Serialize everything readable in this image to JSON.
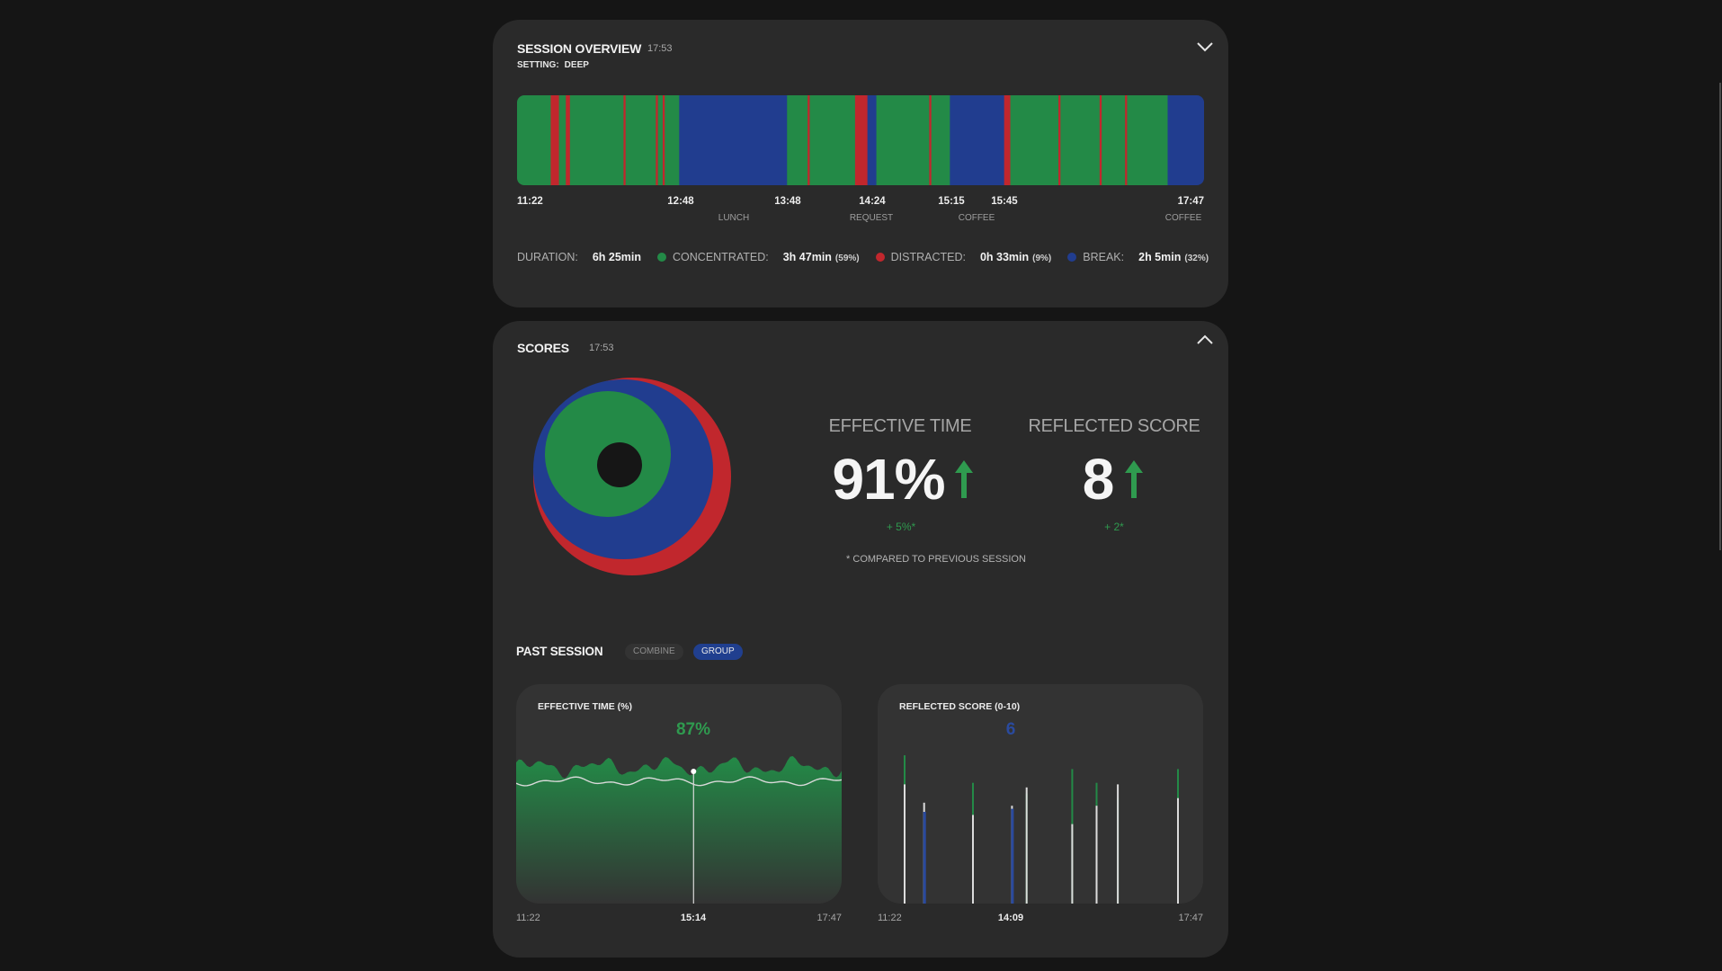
{
  "overview": {
    "title": "SESSION OVERVIEW",
    "time": "17:53",
    "setting_label": "SETTING:",
    "setting_value": "DEEP",
    "ticks": [
      "11:22",
      "12:48",
      "13:48",
      "14:24",
      "15:15",
      "15:45",
      "17:47"
    ],
    "annotations": [
      "LUNCH",
      "REQUEST",
      "COFFEE",
      "COFFEE"
    ],
    "duration_label": "DURATION:",
    "duration_value": "6h 25min",
    "concentrated_label": "CONCENTRATED:",
    "concentrated_value": "3h 47min",
    "concentrated_pct": "(59%)",
    "distracted_label": "DISTRACTED:",
    "distracted_value": "0h 33min",
    "distracted_pct": "(9%)",
    "break_label": "BREAK:",
    "break_value": "2h 5min",
    "break_pct": "(32%)",
    "colors": {
      "concentrated": "#238a47",
      "distracted": "#c1272d",
      "break": "#213d8f"
    },
    "timeline": [
      [
        "c",
        0.0,
        0.049
      ],
      [
        "d",
        0.049,
        0.061
      ],
      [
        "c",
        0.061,
        0.071
      ],
      [
        "d",
        0.071,
        0.077
      ],
      [
        "c",
        0.077,
        0.155
      ],
      [
        "d",
        0.155,
        0.158
      ],
      [
        "c",
        0.158,
        0.202
      ],
      [
        "d",
        0.202,
        0.205
      ],
      [
        "c",
        0.205,
        0.212
      ],
      [
        "d",
        0.212,
        0.215
      ],
      [
        "c",
        0.215,
        0.236
      ],
      [
        "b",
        0.236,
        0.393
      ],
      [
        "c",
        0.393,
        0.423
      ],
      [
        "d",
        0.423,
        0.426
      ],
      [
        "c",
        0.426,
        0.492
      ],
      [
        "d",
        0.492,
        0.51
      ],
      [
        "b",
        0.51,
        0.523
      ],
      [
        "c",
        0.523,
        0.6
      ],
      [
        "d",
        0.6,
        0.603
      ],
      [
        "c",
        0.603,
        0.63
      ],
      [
        "b",
        0.63,
        0.709
      ],
      [
        "d",
        0.709,
        0.718
      ],
      [
        "c",
        0.718,
        0.788
      ],
      [
        "d",
        0.788,
        0.791
      ],
      [
        "c",
        0.791,
        0.848
      ],
      [
        "d",
        0.848,
        0.851
      ],
      [
        "c",
        0.851,
        0.885
      ],
      [
        "d",
        0.885,
        0.888
      ],
      [
        "c",
        0.888,
        0.947
      ],
      [
        "b",
        0.947,
        1.0
      ]
    ]
  },
  "scores": {
    "title": "SCORES",
    "time": "17:53",
    "effective_label": "EFFECTIVE TIME",
    "effective_value": "91%",
    "effective_delta": "+ 5%*",
    "reflected_label": "REFLECTED SCORE",
    "reflected_value": "8",
    "reflected_delta": "+ 2*",
    "footnote": "* COMPARED TO PREVIOUS SESSION",
    "donut": {
      "distracted": 9,
      "break": 32,
      "concentrated": 59
    }
  },
  "past": {
    "title": "PAST SESSION",
    "combine_label": "COMBINE",
    "group_label": "GROUP",
    "effective": {
      "title": "EFFECTIVE TIME (%)",
      "value": "87%",
      "value_color": "#2f9a4f",
      "cursor": 0.545,
      "axis_start": "11:22",
      "axis_mid": "15:14",
      "axis_end": "17:47"
    },
    "reflected": {
      "title": "REFLECTED SCORE (0-10)",
      "value": "6",
      "value_color": "#2a4a9e",
      "axis_start": "11:22",
      "axis_mid": "14:09",
      "axis_end": "17:47",
      "bars": [
        {
          "x": 0.08,
          "green": 0.97,
          "white": 0.78,
          "blue": 0
        },
        {
          "x": 0.14,
          "green": 0,
          "white": 0.66,
          "blue": 0.6
        },
        {
          "x": 0.29,
          "green": 0.79,
          "white": 0.58,
          "blue": 0
        },
        {
          "x": 0.41,
          "green": 0,
          "white": 0.64,
          "blue": 0.62
        },
        {
          "x": 0.455,
          "green": 0.72,
          "white": 0.76,
          "blue": 0
        },
        {
          "x": 0.595,
          "green": 0.88,
          "white": 0.52,
          "blue": 0
        },
        {
          "x": 0.67,
          "green": 0.79,
          "white": 0.64,
          "blue": 0
        },
        {
          "x": 0.735,
          "green": 0.69,
          "white": 0.78,
          "blue": 0
        },
        {
          "x": 0.92,
          "green": 0.88,
          "white": 0.69,
          "blue": 0
        }
      ]
    }
  }
}
